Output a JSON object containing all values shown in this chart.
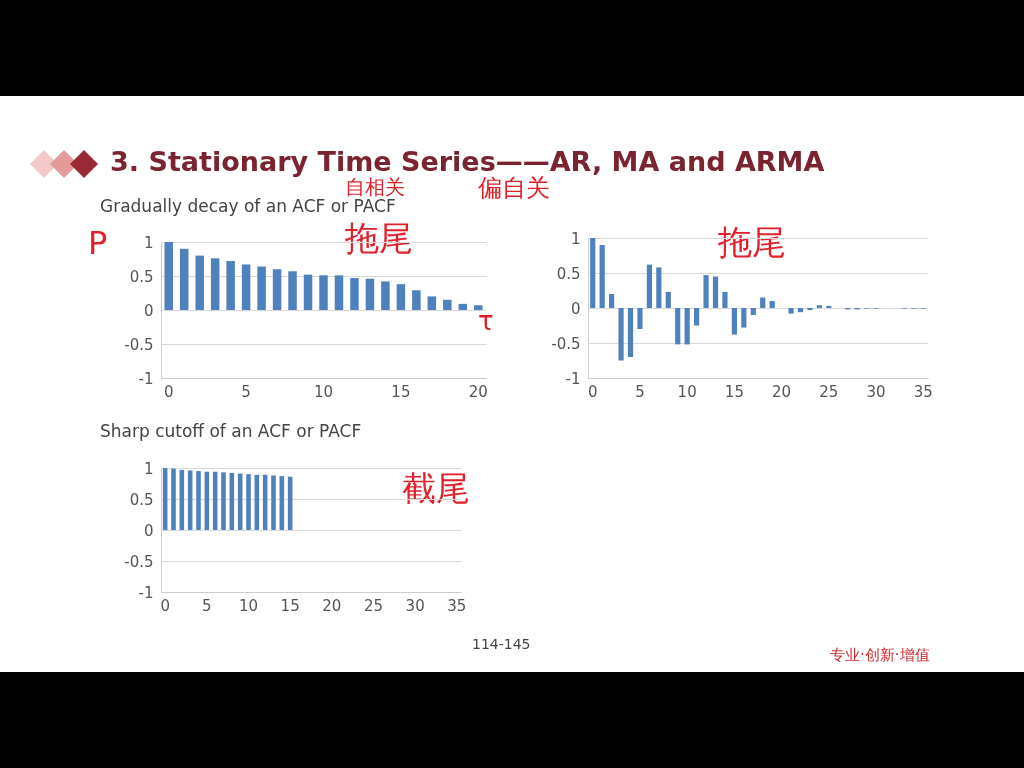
{
  "chart_data": [
    {
      "type": "bar",
      "title": "3. Stationary Time Series——AR, MA and ARMA",
      "subtitle": "Gradually decay of an ACF or PACF",
      "categories": [
        "0",
        null,
        null,
        null,
        null,
        "5",
        null,
        null,
        null,
        null,
        "10",
        null,
        null,
        null,
        null,
        "15",
        null,
        null,
        null,
        null,
        "20"
      ],
      "values": [
        1,
        0.9,
        0.8,
        0.76,
        0.72,
        0.67,
        0.64,
        0.6,
        0.57,
        0.52,
        0.51,
        0.51,
        0.47,
        0.46,
        0.42,
        0.38,
        0.29,
        0.2,
        0.15,
        0.09,
        0.07
      ],
      "color": "#4f81bd",
      "ylim": [
        -1,
        1
      ],
      "yticks": [
        -1,
        -0.5,
        0,
        0.5,
        1
      ],
      "grid": "y",
      "annotations": [
        "自相关",
        "偏自关",
        "拖尾",
        "P",
        "τ"
      ]
    },
    {
      "type": "bar",
      "categories": [
        "0",
        null,
        null,
        null,
        null,
        "5",
        null,
        null,
        null,
        null,
        "10",
        null,
        null,
        null,
        null,
        "15",
        null,
        null,
        null,
        null,
        "20",
        null,
        null,
        null,
        null,
        "25",
        null,
        null,
        null,
        null,
        "30",
        null,
        null,
        null,
        null,
        "35"
      ],
      "values": [
        1,
        0.9,
        0.2,
        -0.75,
        -0.7,
        -0.3,
        0.62,
        0.58,
        0.23,
        -0.52,
        -0.52,
        -0.25,
        0.47,
        0.45,
        0.23,
        -0.38,
        -0.28,
        -0.1,
        0.15,
        0.1,
        0,
        -0.08,
        -0.06,
        -0.03,
        0.04,
        0.03,
        0,
        -0.02,
        -0.02,
        -0.01,
        -0.01,
        0,
        0,
        -0.01,
        -0.01,
        -0.01
      ],
      "color": "#4f81bd",
      "ylim": [
        -1,
        1
      ],
      "yticks": [
        -1,
        -0.5,
        0,
        0.5,
        1
      ],
      "grid": "y",
      "annotations": [
        "拖尾"
      ]
    },
    {
      "type": "bar",
      "title": "Sharp cutoff of an ACF or PACF",
      "categories": [
        "0",
        null,
        null,
        null,
        null,
        "5",
        null,
        null,
        null,
        null,
        "10",
        null,
        null,
        null,
        null,
        "15",
        null,
        null,
        null,
        null,
        "20",
        null,
        null,
        null,
        null,
        "25",
        null,
        null,
        null,
        null,
        "30",
        null,
        null,
        null,
        null,
        "35"
      ],
      "values": [
        1,
        0.99,
        0.97,
        0.96,
        0.95,
        0.94,
        0.94,
        0.93,
        0.92,
        0.91,
        0.9,
        0.89,
        0.89,
        0.88,
        0.87,
        0.86,
        null,
        null,
        null,
        null,
        null,
        null,
        null,
        null,
        null,
        null,
        null,
        null,
        null,
        null,
        null,
        null,
        null,
        null,
        null,
        null
      ],
      "color": "#4f81bd",
      "ylim": [
        -1,
        1
      ],
      "yticks": [
        -1,
        -0.5,
        0,
        0.5,
        1
      ],
      "grid": "y",
      "annotations": [
        "截尾",
        "114-145",
        "专业·创新·增值"
      ]
    }
  ]
}
